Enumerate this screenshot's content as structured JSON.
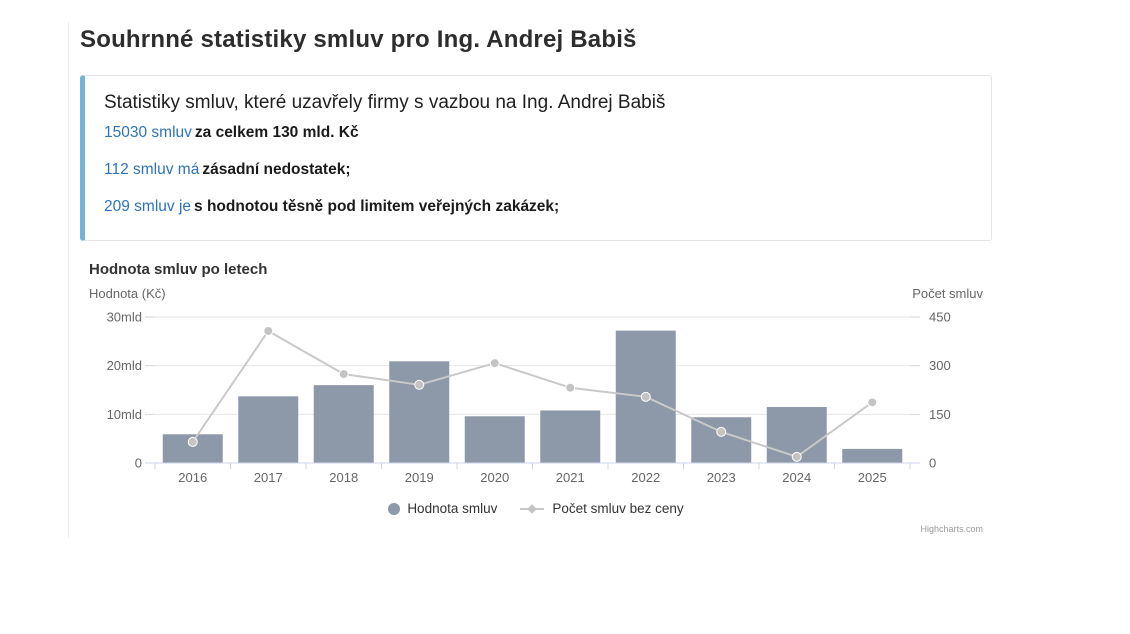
{
  "page": {
    "title": "Souhrnné statistiky smluv pro Ing. Andrej Babiš"
  },
  "infobox": {
    "heading": "Statistiky smluv, které uzavřely firmy s vazbou na Ing. Andrej Babiš",
    "accent_color": "#72b5d8",
    "link_color": "#2d74b9",
    "lines": [
      {
        "link": "15030 smluv",
        "text": "za celkem 130 mld. Kč"
      },
      {
        "link": "112 smluv má",
        "text": "zásadní nedostatek;"
      },
      {
        "link": "209 smluv je",
        "text": "s hodnotou těsně pod limitem veřejných zakázek;"
      }
    ]
  },
  "chart_data": {
    "type": "combo",
    "title": "Hodnota smluv po letech",
    "categories": [
      "2016",
      "2017",
      "2018",
      "2019",
      "2020",
      "2021",
      "2022",
      "2023",
      "2024",
      "2025"
    ],
    "series": [
      {
        "name": "Hodnota smluv",
        "type": "bar",
        "axis": "left",
        "color": "#8d98a8",
        "unit": "mld Kč",
        "values": [
          5.9,
          13.7,
          16.0,
          20.9,
          9.6,
          10.8,
          27.2,
          9.4,
          11.5,
          2.9
        ]
      },
      {
        "name": "Počet smluv bez ceny",
        "type": "line",
        "axis": "right",
        "color": "#c9c9c9",
        "marker_color": "#c4c4c4",
        "values": [
          65,
          407,
          274,
          241,
          308,
          232,
          204,
          96,
          19,
          187
        ]
      }
    ],
    "left_axis": {
      "title": "Hodnota (Kč)",
      "ticks": [
        "30mld",
        "20mld",
        "10mld",
        "0"
      ],
      "min": 0,
      "max": 30
    },
    "right_axis": {
      "title": "Počet smluv",
      "ticks": [
        "450",
        "300",
        "150",
        "0"
      ],
      "min": 0,
      "max": 450
    },
    "grid": true,
    "legend_position": "bottom-center",
    "colors": {
      "gridline": "#e6e6e6",
      "axis_line": "#ccd6eb",
      "tick_dash": "#d6d6d6",
      "tick_label": "#666666",
      "axis_title": "#666666"
    },
    "credits": "Highcharts.com"
  }
}
